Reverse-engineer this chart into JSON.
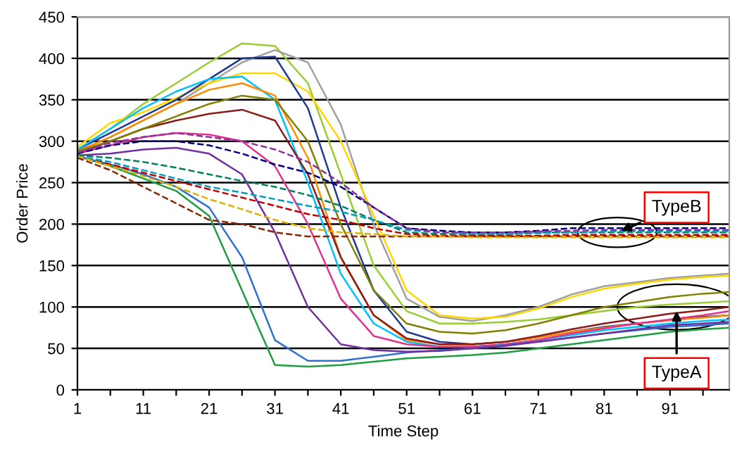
{
  "chart_data": {
    "type": "line",
    "xlabel": "Time Step",
    "ylabel": "Order Price",
    "x": [
      1,
      6,
      11,
      16,
      21,
      26,
      31,
      36,
      41,
      46,
      51,
      56,
      61,
      66,
      71,
      76,
      81,
      86,
      91,
      96,
      100
    ],
    "xlim": [
      1,
      100
    ],
    "xticks": [
      1,
      {
        "value": 6,
        "label": null
      },
      11,
      {
        "value": 16,
        "label": null
      },
      21,
      {
        "value": 26,
        "label": null
      },
      31,
      {
        "value": 36,
        "label": null
      },
      41,
      {
        "value": 46,
        "label": null
      },
      51,
      {
        "value": 56,
        "label": null
      },
      61,
      {
        "value": 66,
        "label": null
      },
      71,
      {
        "value": 76,
        "label": null
      },
      81,
      {
        "value": 86,
        "label": null
      },
      91,
      {
        "value": 96,
        "label": null
      }
    ],
    "ylim": [
      0,
      450
    ],
    "yticks": [
      0,
      50,
      100,
      150,
      200,
      250,
      300,
      350,
      400,
      450
    ],
    "grid": "y",
    "legend": false,
    "marker": "none",
    "annotations": [
      {
        "text": "TypeB",
        "x": 83,
        "y": 190
      },
      {
        "text": "TypeA",
        "x": 92,
        "y": 100
      }
    ],
    "series": [
      {
        "color": "#9acd32",
        "line_style": "solid",
        "values": [
          290,
          315,
          345,
          370,
          395,
          418,
          415,
          370,
          260,
          150,
          95,
          80,
          80,
          82,
          85,
          90,
          95,
          100,
          103,
          105,
          107
        ]
      },
      {
        "color": "#a0a0a0",
        "line_style": "solid",
        "values": [
          288,
          305,
          325,
          345,
          370,
          395,
          410,
          395,
          320,
          200,
          110,
          88,
          83,
          90,
          100,
          115,
          125,
          130,
          135,
          138,
          140
        ]
      },
      {
        "color": "#ffd700",
        "line_style": "solid",
        "values": [
          293,
          322,
          335,
          352,
          370,
          382,
          382,
          360,
          300,
          210,
          120,
          90,
          86,
          88,
          98,
          112,
          122,
          128,
          133,
          136,
          138
        ]
      },
      {
        "color": "#1f3a93",
        "line_style": "solid",
        "values": [
          290,
          310,
          330,
          350,
          375,
          400,
          402,
          340,
          220,
          120,
          70,
          58,
          55,
          58,
          63,
          70,
          76,
          80,
          84,
          88,
          90
        ]
      },
      {
        "color": "#00bfff",
        "line_style": "solid",
        "values": [
          290,
          315,
          340,
          360,
          375,
          378,
          350,
          250,
          140,
          80,
          58,
          52,
          52,
          55,
          60,
          66,
          72,
          76,
          80,
          83,
          85
        ]
      },
      {
        "color": "#ff8c00",
        "line_style": "solid",
        "values": [
          288,
          305,
          325,
          345,
          362,
          370,
          355,
          280,
          160,
          90,
          60,
          55,
          55,
          58,
          63,
          70,
          75,
          80,
          84,
          87,
          90
        ]
      },
      {
        "color": "#8b1a1a",
        "line_style": "solid",
        "values": [
          285,
          300,
          315,
          325,
          333,
          338,
          325,
          260,
          160,
          90,
          62,
          55,
          55,
          58,
          65,
          73,
          80,
          86,
          92,
          96,
          100
        ]
      },
      {
        "color": "#e0338c",
        "line_style": "solid",
        "values": [
          285,
          295,
          305,
          310,
          308,
          300,
          270,
          200,
          110,
          65,
          55,
          52,
          52,
          55,
          60,
          68,
          74,
          80,
          85,
          90,
          95
        ]
      },
      {
        "color": "#1e9e3e",
        "line_style": "solid",
        "values": [
          282,
          270,
          255,
          240,
          210,
          120,
          30,
          28,
          30,
          34,
          38,
          40,
          42,
          45,
          50,
          55,
          60,
          65,
          70,
          73,
          75
        ]
      },
      {
        "color": "#3070d0",
        "line_style": "solid",
        "values": [
          282,
          272,
          260,
          245,
          220,
          160,
          60,
          35,
          35,
          40,
          45,
          48,
          50,
          54,
          58,
          63,
          68,
          72,
          76,
          78,
          80
        ]
      },
      {
        "color": "#7030a0",
        "line_style": "solid",
        "values": [
          283,
          285,
          290,
          292,
          285,
          260,
          190,
          100,
          55,
          48,
          46,
          47,
          50,
          53,
          58,
          63,
          68,
          73,
          78,
          80,
          82
        ]
      },
      {
        "color": "#808000",
        "line_style": "solid",
        "values": [
          288,
          300,
          315,
          330,
          345,
          355,
          350,
          300,
          200,
          120,
          80,
          70,
          68,
          72,
          80,
          90,
          100,
          106,
          112,
          116,
          118
        ]
      },
      {
        "color": "#000080",
        "line_style": "dashed",
        "values": [
          285,
          295,
          300,
          300,
          295,
          285,
          272,
          262,
          245,
          220,
          195,
          192,
          190,
          190,
          192,
          195,
          195,
          195,
          195,
          195,
          195
        ]
      },
      {
        "color": "#008060",
        "line_style": "dashed",
        "values": [
          283,
          280,
          275,
          268,
          260,
          252,
          245,
          235,
          222,
          205,
          190,
          188,
          188,
          188,
          190,
          190,
          190,
          190,
          190,
          190,
          190
        ]
      },
      {
        "color": "#c00000",
        "line_style": "dashed",
        "values": [
          282,
          272,
          262,
          252,
          242,
          232,
          222,
          212,
          205,
          195,
          188,
          186,
          186,
          186,
          186,
          187,
          187,
          187,
          187,
          187,
          187
        ]
      },
      {
        "color": "#8b2500",
        "line_style": "dashed",
        "values": [
          280,
          265,
          245,
          225,
          205,
          200,
          190,
          185,
          185,
          185,
          185,
          185,
          185,
          185,
          185,
          185,
          185,
          185,
          185,
          185,
          185
        ]
      },
      {
        "color": "#00a0c0",
        "line_style": "dashed",
        "values": [
          282,
          275,
          265,
          255,
          245,
          238,
          230,
          222,
          215,
          205,
          193,
          190,
          188,
          188,
          189,
          190,
          191,
          191,
          191,
          191,
          191
        ]
      },
      {
        "color": "#e0b000",
        "line_style": "dashed",
        "values": [
          282,
          270,
          258,
          245,
          230,
          218,
          205,
          195,
          190,
          188,
          185,
          185,
          184,
          184,
          184,
          184,
          184,
          184,
          184,
          184,
          184
        ]
      },
      {
        "color": "#9030a0",
        "line_style": "dashed",
        "values": [
          286,
          298,
          305,
          310,
          305,
          300,
          290,
          275,
          250,
          220,
          195,
          190,
          190,
          190,
          191,
          192,
          193,
          193,
          193,
          193,
          193
        ]
      }
    ]
  }
}
